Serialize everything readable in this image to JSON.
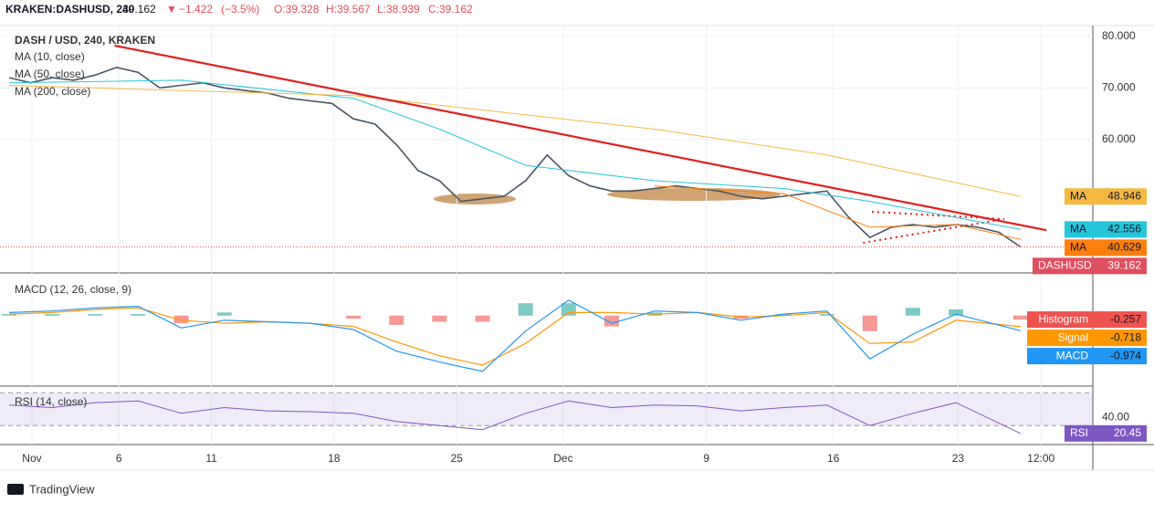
{
  "header": {
    "symbol": "KRAKEN:DASHUSD, 240",
    "last": 39.162,
    "arrow": "▼",
    "change": {
      "value": -1.422,
      "label": "−1.422"
    },
    "change_pct": {
      "value": -3.5,
      "label": "(−3.5%)"
    },
    "ohlc": [
      {
        "value": 39.328,
        "label": "O:39.328"
      },
      {
        "value": 39.567,
        "label": "H:39.567"
      },
      {
        "value": 38.939,
        "label": "L:38.939"
      },
      {
        "value": 39.162,
        "label": "C:39.162"
      }
    ]
  },
  "chart_data": [
    {
      "type": "line",
      "title": "DASH / USD, 240, KRAKEN",
      "ylim": [
        34.3,
        82.1
      ],
      "yticks": [
        {
          "value": 80,
          "label": "80.000"
        },
        {
          "value": 70,
          "label": "70.000"
        },
        {
          "value": 60,
          "label": "60.000"
        }
      ],
      "xticks": [
        {
          "value": 1.06,
          "label": "Nov"
        },
        {
          "value": 5.1,
          "label": "6"
        },
        {
          "value": 9.4,
          "label": "11"
        },
        {
          "value": 15.1,
          "label": "18"
        },
        {
          "value": 20.8,
          "label": "25"
        },
        {
          "value": 25.75,
          "label": "Dec"
        },
        {
          "value": 32.4,
          "label": "9"
        },
        {
          "value": 38.3,
          "label": "16"
        },
        {
          "value": 44.1,
          "label": "23"
        },
        {
          "value": 47.95,
          "label": "12:00"
        }
      ],
      "grid": true,
      "series": [
        {
          "name": "DASHUSD",
          "scale_tag": "DASHUSD",
          "color": "#e04f5f",
          "line_color": "#4a5560",
          "x": [
            0,
            1,
            2,
            3,
            4,
            5,
            6,
            7,
            8,
            9,
            10,
            11,
            12,
            13,
            14,
            15,
            16,
            17,
            18,
            19,
            20,
            21,
            22,
            23,
            24,
            25,
            26,
            27,
            28,
            29,
            30,
            31,
            32,
            33,
            34,
            35,
            36,
            37,
            38,
            39,
            40,
            41,
            42,
            43,
            44,
            45,
            46,
            47
          ],
          "values": [
            72,
            71,
            72,
            71.5,
            72.5,
            74,
            73,
            70,
            70.5,
            71,
            70,
            69.5,
            69,
            68,
            67.5,
            67,
            64,
            63,
            59,
            54,
            52,
            48,
            48.5,
            49,
            52,
            57,
            53,
            51,
            50,
            50,
            50.5,
            51,
            50.5,
            50,
            49,
            48.5,
            49,
            49.5,
            50,
            45,
            41,
            43,
            43.5,
            43,
            43.5,
            43,
            42,
            39.162
          ]
        },
        {
          "name": "MA (10, close)",
          "scale_tag": "MA",
          "color": "#ff7f0e",
          "x": [
            30,
            36,
            40,
            44,
            47
          ],
          "values": [
            51,
            49.5,
            43,
            43.5,
            40.629
          ]
        },
        {
          "name": "MA (50, close)",
          "scale_tag": "MA",
          "color": "#26c6da",
          "x": [
            0,
            8,
            16,
            20,
            24,
            30,
            36,
            40,
            47
          ],
          "values": [
            71,
            71.5,
            68,
            62,
            55,
            52,
            50.5,
            48,
            42.556
          ]
        },
        {
          "name": "MA (200, close)",
          "scale_tag": "MA",
          "color": "#f5b942",
          "x": [
            0,
            16,
            30,
            38,
            47
          ],
          "values": [
            70.5,
            68.5,
            62,
            57,
            48.946
          ]
        }
      ],
      "trendline": {
        "color": "#e02020",
        "x": [
          4.9,
          48.2
        ],
        "values": [
          78.2,
          42.4
        ]
      }
    },
    {
      "type": "macd",
      "title": "MACD (12, 26, close, 9)",
      "ylim": [
        -4.5,
        2.7
      ],
      "color_up": "#26a69a",
      "x": [
        0,
        2,
        4,
        6,
        8,
        10,
        12,
        14,
        16,
        18,
        20,
        22,
        24,
        26,
        28,
        30,
        32,
        34,
        36,
        38,
        40,
        42,
        44,
        47
      ],
      "series": [
        {
          "name": "Histogram",
          "color": "#ef5350",
          "values": [
            0.1,
            0.1,
            0.1,
            0.1,
            -0.5,
            0.2,
            0,
            0,
            -0.2,
            -0.6,
            -0.4,
            -0.4,
            0.8,
            0.8,
            -0.7,
            0.2,
            0,
            -0.2,
            0.1,
            0.1,
            -1.0,
            0.5,
            0.4,
            -0.257
          ]
        },
        {
          "name": "Signal",
          "color": "#ff9800",
          "values": [
            0.1,
            0.2,
            0.4,
            0.5,
            -0.3,
            -0.5,
            -0.4,
            -0.5,
            -0.7,
            -1.7,
            -2.6,
            -3.2,
            -1.8,
            0.2,
            0.2,
            0.1,
            0.2,
            -0.1,
            0,
            0.2,
            -1.8,
            -1.7,
            -0.3,
            -0.718
          ]
        },
        {
          "name": "MACD",
          "color": "#2196f3",
          "values": [
            0.2,
            0.3,
            0.5,
            0.6,
            -0.8,
            -0.3,
            -0.4,
            -0.5,
            -0.9,
            -2.3,
            -3.0,
            -3.6,
            -1.0,
            1.0,
            -0.5,
            0.3,
            0.2,
            -0.3,
            0.1,
            0.3,
            -2.8,
            -1.2,
            0.1,
            -0.974
          ]
        }
      ]
    },
    {
      "type": "rsi",
      "title": "RSI (14, close)",
      "ylim": [
        8,
        77
      ],
      "yticks": [
        {
          "value": 40,
          "label": "40.00"
        }
      ],
      "bands": [
        30,
        70
      ],
      "x": [
        0,
        2,
        4,
        6,
        8,
        10,
        12,
        14,
        16,
        18,
        20,
        22,
        24,
        26,
        28,
        30,
        32,
        34,
        36,
        38,
        40,
        42,
        44,
        47
      ],
      "series": [
        {
          "name": "RSI",
          "color": "#7e57c2",
          "values": [
            55,
            52,
            58,
            60,
            45,
            52,
            48,
            47,
            45,
            35,
            30,
            25,
            45,
            60,
            52,
            55,
            54,
            48,
            52,
            55,
            30,
            45,
            58,
            20.45
          ]
        }
      ]
    }
  ],
  "footer": {
    "brand": "TradingView"
  }
}
